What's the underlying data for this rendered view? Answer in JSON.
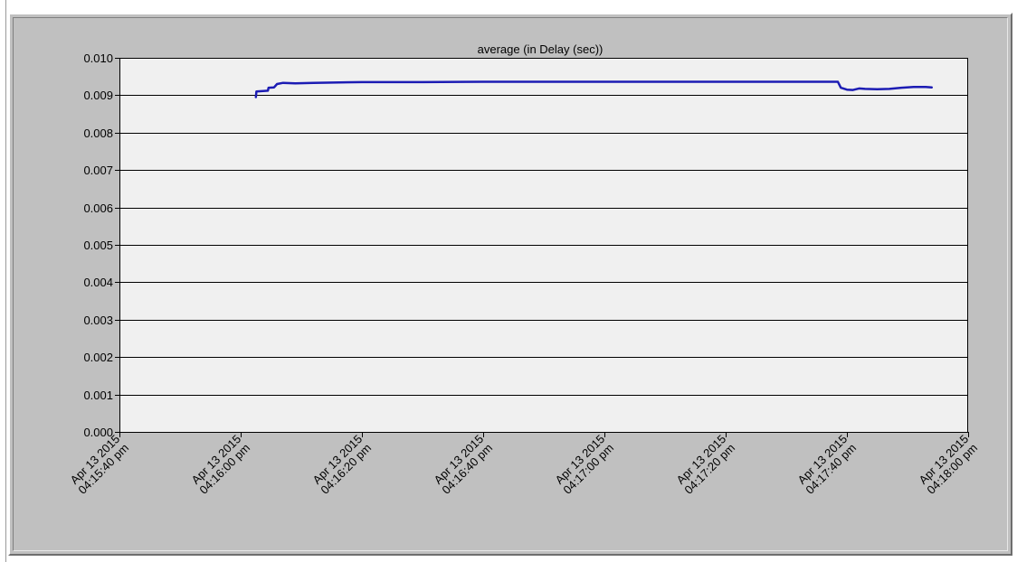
{
  "chart_data": {
    "type": "line",
    "title": "average (in Delay (sec))",
    "xlabel": "",
    "ylabel": "",
    "ylim": [
      0.0,
      0.01
    ],
    "yticks": [
      "0.000",
      "0.001",
      "0.002",
      "0.003",
      "0.004",
      "0.005",
      "0.006",
      "0.007",
      "0.008",
      "0.009",
      "0.010"
    ],
    "xlim": [
      "2015-04-13 16:15:40",
      "2015-04-13 16:18:00"
    ],
    "xticks": [
      {
        "at": "2015-04-13 16:15:40",
        "line1": "Apr 13 2015",
        "line2": "04:15:40 pm"
      },
      {
        "at": "2015-04-13 16:16:00",
        "line1": "Apr 13 2015",
        "line2": "04:16:00 pm"
      },
      {
        "at": "2015-04-13 16:16:20",
        "line1": "Apr 13 2015",
        "line2": "04:16:20 pm"
      },
      {
        "at": "2015-04-13 16:16:40",
        "line1": "Apr 13 2015",
        "line2": "04:16:40 pm"
      },
      {
        "at": "2015-04-13 16:17:00",
        "line1": "Apr 13 2015",
        "line2": "04:17:00 pm"
      },
      {
        "at": "2015-04-13 16:17:20",
        "line1": "Apr 13 2015",
        "line2": "04:17:20 pm"
      },
      {
        "at": "2015-04-13 16:17:40",
        "line1": "Apr 13 2015",
        "line2": "04:17:40 pm"
      },
      {
        "at": "2015-04-13 16:18:00",
        "line1": "Apr 13 2015",
        "line2": "04:18:00 pm"
      }
    ],
    "grid": true,
    "legend": "none",
    "colors": {
      "series": "#1c1cb4",
      "plot_background": "#f0f0f0",
      "panel_background": "#c0c0c0",
      "gridline": "#000000"
    },
    "series": [
      {
        "points": [
          [
            "2015-04-13 16:16:02.5",
            0.00895
          ],
          [
            "2015-04-13 16:16:02.6",
            0.0091
          ],
          [
            "2015-04-13 16:16:04.5",
            0.00912
          ],
          [
            "2015-04-13 16:16:04.6",
            0.0092
          ],
          [
            "2015-04-13 16:16:05.5",
            0.00921
          ],
          [
            "2015-04-13 16:16:06.0",
            0.0093
          ],
          [
            "2015-04-13 16:16:07.0",
            0.00933
          ],
          [
            "2015-04-13 16:16:09.0",
            0.00932
          ],
          [
            "2015-04-13 16:16:12.0",
            0.00933
          ],
          [
            "2015-04-13 16:16:20.0",
            0.00935
          ],
          [
            "2015-04-13 16:16:30.0",
            0.00935
          ],
          [
            "2015-04-13 16:16:40.0",
            0.00936
          ],
          [
            "2015-04-13 16:17:00.0",
            0.00936
          ],
          [
            "2015-04-13 16:17:20.0",
            0.00936
          ],
          [
            "2015-04-13 16:17:38.5",
            0.00936
          ],
          [
            "2015-04-13 16:17:39.0",
            0.0092
          ],
          [
            "2015-04-13 16:17:40.0",
            0.00915
          ],
          [
            "2015-04-13 16:17:41.0",
            0.00914
          ],
          [
            "2015-04-13 16:17:42.0",
            0.00918
          ],
          [
            "2015-04-13 16:17:43.0",
            0.00917
          ],
          [
            "2015-04-13 16:17:45.0",
            0.00916
          ],
          [
            "2015-04-13 16:17:47.0",
            0.00917
          ],
          [
            "2015-04-13 16:17:49.0",
            0.0092
          ],
          [
            "2015-04-13 16:17:51.0",
            0.00922
          ],
          [
            "2015-04-13 16:17:53.0",
            0.00922
          ],
          [
            "2015-04-13 16:17:54.0",
            0.00921
          ]
        ]
      }
    ]
  }
}
